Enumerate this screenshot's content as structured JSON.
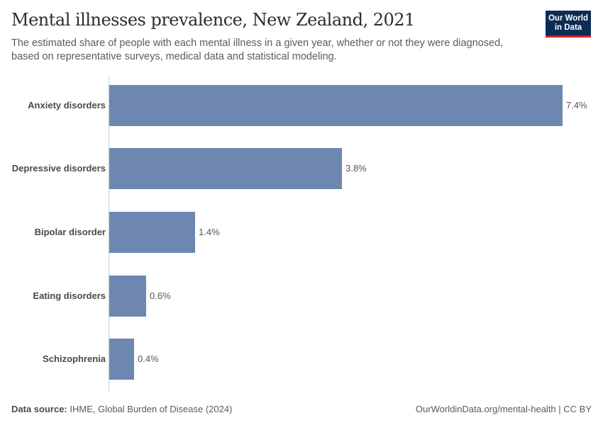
{
  "header": {
    "title": "Mental illnesses prevalence, New Zealand, 2021",
    "subtitle": "The estimated share of people with each mental illness in a given year, whether or not they were diagnosed, based on representative surveys, medical data and statistical modeling.",
    "logo_line1": "Our World",
    "logo_line2": "in Data"
  },
  "colors": {
    "bar": "#6d87b0",
    "logo_bg": "#0d2c54",
    "logo_accent": "#ce261e"
  },
  "chart_data": {
    "type": "bar",
    "orientation": "horizontal",
    "title": "Mental illnesses prevalence, New Zealand, 2021",
    "subtitle": "The estimated share of people with each mental illness in a given year, whether or not they were diagnosed, based on representative surveys, medical data and statistical modeling.",
    "categories": [
      "Anxiety disorders",
      "Depressive disorders",
      "Bipolar disorder",
      "Eating disorders",
      "Schizophrenia"
    ],
    "values": [
      7.4,
      3.8,
      1.4,
      0.6,
      0.4
    ],
    "value_labels": [
      "7.4%",
      "3.8%",
      "1.4%",
      "0.6%",
      "0.4%"
    ],
    "unit": "%",
    "xlabel": "",
    "ylabel": "",
    "xlim": [
      0,
      7.4
    ],
    "grid": false,
    "legend": null
  },
  "footer": {
    "source_label": "Data source:",
    "source_text": " IHME, Global Burden of Disease (2024)",
    "right_text": "OurWorldinData.org/mental-health | CC BY"
  }
}
